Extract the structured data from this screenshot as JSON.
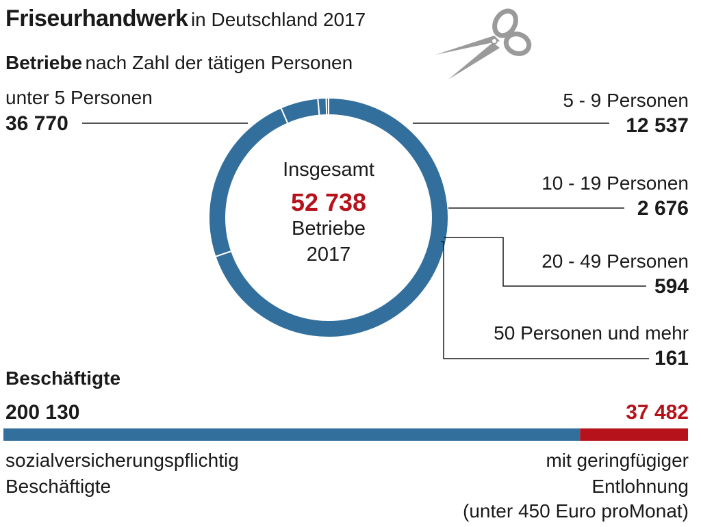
{
  "header": {
    "title_bold": "Friseurhandwerk",
    "title_rest": "in Deutschland 2017",
    "subtitle_bold": "Betriebe",
    "subtitle_rest": "nach Zahl der tätigen Personen"
  },
  "colors": {
    "blue": "#336f9d",
    "red": "#b5121b",
    "text": "#1a1a1a",
    "leader": "#1a1a1a"
  },
  "center": {
    "line1": "Insgesamt",
    "total": "52 738",
    "line3": "Betriebe",
    "line4": "2017"
  },
  "chart_data": [
    {
      "type": "pie",
      "style": "donut",
      "title": "Betriebe nach Zahl der tätigen Personen",
      "categories": [
        "unter 5 Personen",
        "5 - 9 Personen",
        "10 - 19 Personen",
        "20 - 49 Personen",
        "50 Personen und mehr"
      ],
      "values": [
        36770,
        12537,
        2676,
        594,
        161
      ],
      "value_labels": [
        "36 770",
        "12 537",
        "2 676",
        "594",
        "161"
      ],
      "total": 52738,
      "total_label": "52 738"
    },
    {
      "type": "bar",
      "orientation": "horizontal-stacked",
      "title": "Beschäftigte",
      "categories": [
        "sozialversicherungspflichtig Beschäftigte",
        "mit geringfügiger Entlohnung (unter 450 Euro proMonat)"
      ],
      "values": [
        200130,
        37482
      ],
      "value_labels": [
        "200 130",
        "37 482"
      ],
      "colors": [
        "#336f9d",
        "#b5121b"
      ]
    }
  ],
  "employees": {
    "title": "Beschäftigte",
    "left_value": "200 130",
    "right_value": "37 482",
    "left_label_1": "sozialversicherungspflichtig",
    "left_label_2": "Beschäftigte",
    "right_label_1": "mit geringfügiger",
    "right_label_2": "Entlohnung",
    "right_label_3": "(unter 450 Euro proMonat)"
  },
  "icon": "scissors-icon"
}
